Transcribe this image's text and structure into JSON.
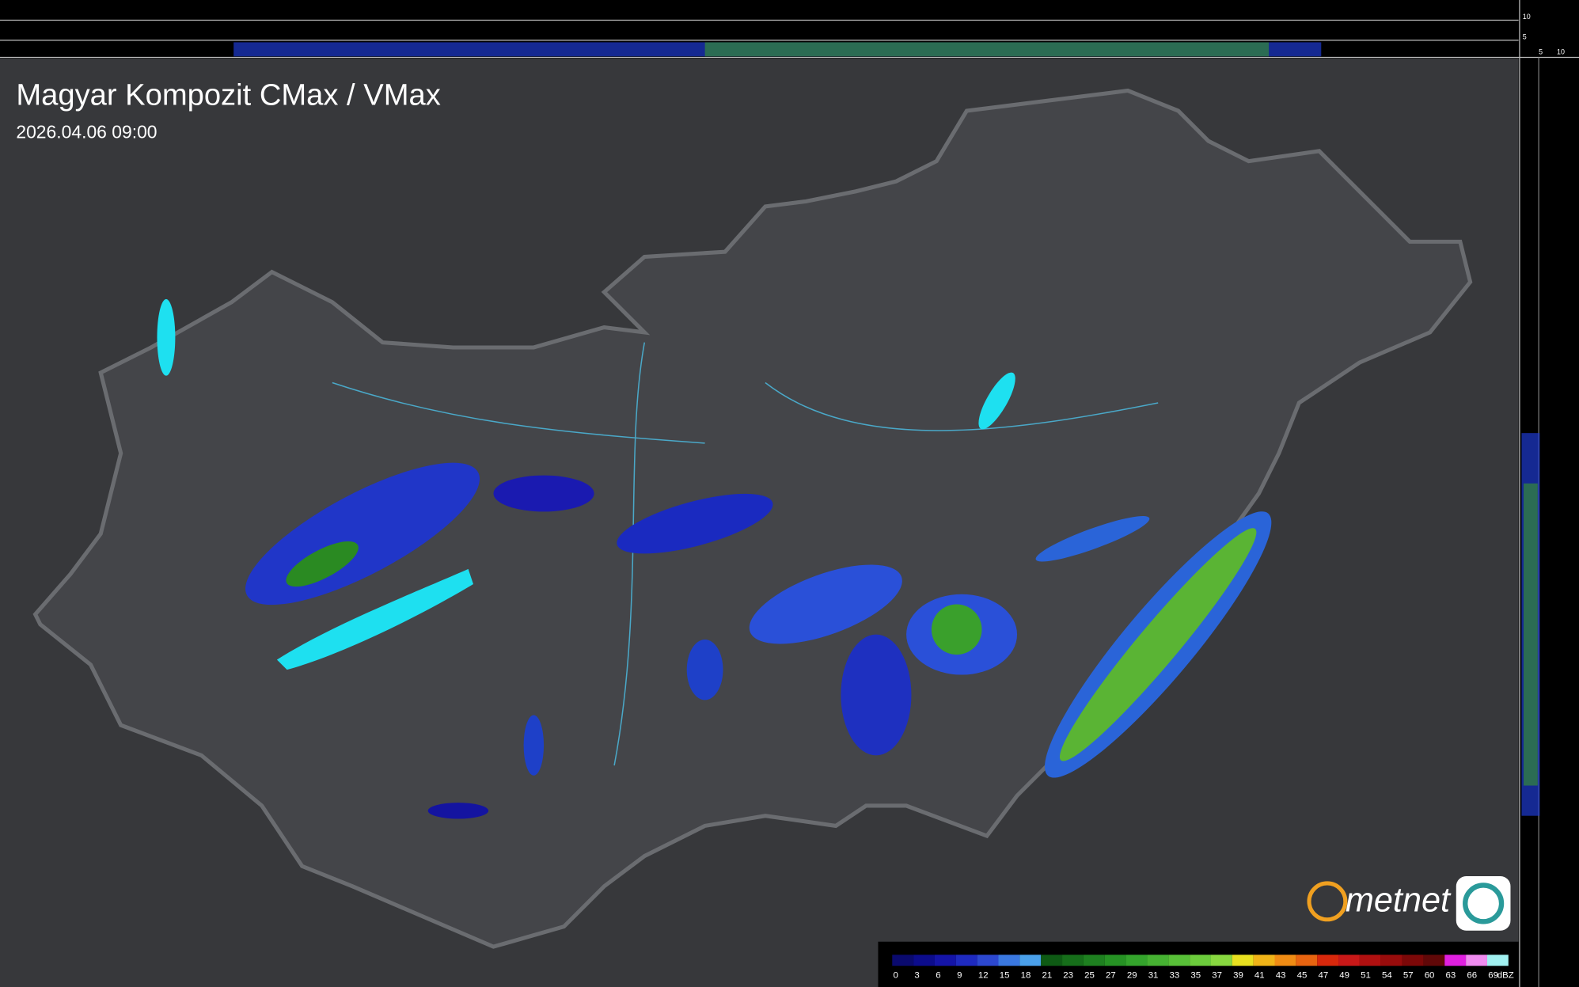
{
  "header": {
    "title": "Magyar Kompozit CMax / VMax",
    "timestamp": "2026.04.06 09:00"
  },
  "top_axis": {
    "labels": [
      10,
      5
    ]
  },
  "side_axis": {
    "labels": [
      5,
      10
    ]
  },
  "logo": {
    "text": "metnet"
  },
  "legend": {
    "ticks": [
      0,
      3,
      6,
      9,
      12,
      15,
      18,
      21,
      23,
      25,
      27,
      29,
      31,
      33,
      35,
      37,
      39,
      41,
      43,
      45,
      47,
      49,
      51,
      54,
      57,
      60,
      63,
      66,
      69
    ],
    "unit": "dBZ",
    "colors": [
      "#0a0a6e",
      "#0c0c8c",
      "#1414a8",
      "#1e2ac0",
      "#2c48d0",
      "#3a78e0",
      "#4aa0ea",
      "#0e5a14",
      "#166e1a",
      "#1e8020",
      "#269224",
      "#34a42c",
      "#46b232",
      "#58c038",
      "#6ccc3c",
      "#88d840",
      "#e8e020",
      "#f0b418",
      "#f08c14",
      "#e86410",
      "#d8280c",
      "#c81818",
      "#b01010",
      "#980c0c",
      "#7c0808",
      "#600808",
      "#e020e0",
      "#f08cf0",
      "#a0f0f0"
    ]
  }
}
